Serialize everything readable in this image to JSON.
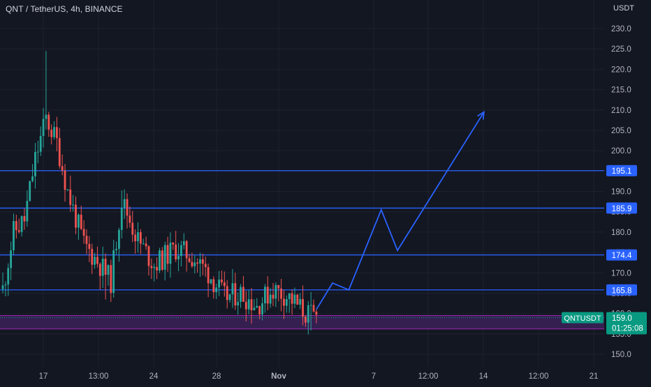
{
  "header": {
    "symbol_title": "QNT / TetherUS, 4h, BINANCE",
    "currency": "USDT"
  },
  "colors": {
    "background": "#131722",
    "grid": "#1e222d",
    "up_candle": "#26a69a",
    "down_candle": "#ef5350",
    "level_line": "#2962ff",
    "level_label_bg": "#2962ff",
    "zone_fill": "#3a2057",
    "zone_line": "#9c27b0",
    "projection": "#2962ff",
    "price_tag_bg": "#089981",
    "axis_text": "#b2b5be"
  },
  "chart_data": {
    "type": "candlestick",
    "title": "QNT / TetherUS, 4h, BINANCE",
    "y_axis": {
      "unit": "USDT",
      "ticks": [
        150.0,
        155.0,
        160.0,
        165.0,
        170.0,
        175.0,
        180.0,
        185.0,
        190.0,
        195.0,
        200.0,
        205.0,
        210.0,
        215.0,
        220.0,
        225.0,
        230.0
      ],
      "tick_labels": [
        "150.0",
        "155.0",
        "160.0",
        "165.0",
        "170.0",
        "175.0",
        "180.0",
        "185.0",
        "190.0",
        "195.0",
        "200.0",
        "205.0",
        "210.0",
        "215.0",
        "220.0",
        "225.0",
        "230.0"
      ],
      "range": [
        147.5,
        236
      ]
    },
    "x_axis": {
      "tick_labels": [
        "17",
        "13:00",
        "24",
        "28",
        "Nov",
        "7",
        "12:00",
        "14",
        "12:00",
        "21"
      ]
    },
    "grid": true,
    "levels": [
      {
        "price": 195.1,
        "label": "195.1"
      },
      {
        "price": 185.9,
        "label": "185.9"
      },
      {
        "price": 174.4,
        "label": "174.4"
      },
      {
        "price": 165.8,
        "label": "165.8"
      }
    ],
    "zone": {
      "from": 156.2,
      "to": 159.5
    },
    "current_price": {
      "symbol": "QNTUSDT",
      "price": 159.0,
      "label": "159.0",
      "countdown": "01:25:08"
    },
    "candle_trend": [
      {
        "i": 0,
        "price": 166
      },
      {
        "i": 4,
        "price": 180
      },
      {
        "i": 8,
        "price": 183
      },
      {
        "i": 12,
        "price": 198
      },
      {
        "i": 16,
        "price": 208
      },
      {
        "i": 20,
        "price": 202
      },
      {
        "i": 24,
        "price": 190
      },
      {
        "i": 30,
        "price": 177
      },
      {
        "i": 36,
        "price": 172
      },
      {
        "i": 40,
        "price": 168
      },
      {
        "i": 44,
        "price": 188
      },
      {
        "i": 50,
        "price": 178
      },
      {
        "i": 56,
        "price": 172
      },
      {
        "i": 64,
        "price": 176
      },
      {
        "i": 70,
        "price": 174
      },
      {
        "i": 76,
        "price": 170
      },
      {
        "i": 82,
        "price": 164
      },
      {
        "i": 88,
        "price": 165
      },
      {
        "i": 94,
        "price": 162
      },
      {
        "i": 100,
        "price": 166
      },
      {
        "i": 106,
        "price": 164
      },
      {
        "i": 112,
        "price": 160
      },
      {
        "i": 116,
        "price": 159
      }
    ],
    "projection_path": [
      {
        "date_index": 116,
        "price": 161
      },
      {
        "date_index": 122,
        "price": 167.5
      },
      {
        "date_index": 128,
        "price": 165.8
      },
      {
        "date_index": 140,
        "price": 185.5
      },
      {
        "date_index": 146,
        "price": 175.5
      },
      {
        "date_index": 178,
        "price": 209.5
      }
    ]
  }
}
